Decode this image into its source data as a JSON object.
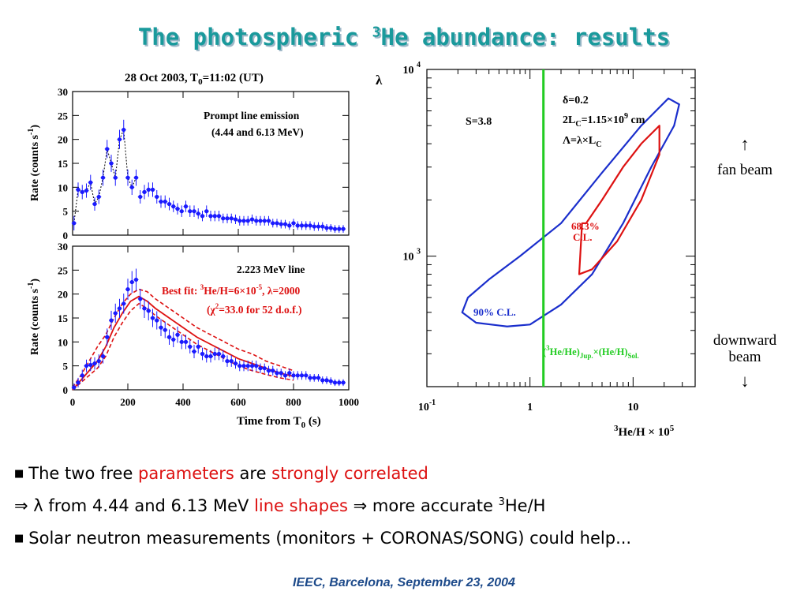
{
  "title": {
    "main": "The photospheric ",
    "sup": "3",
    "rest": "He abundance: results"
  },
  "left_panel": {
    "header": "28 Oct 2003,  T",
    "header_sub": "0",
    "header_rest": "=11:02 (UT)",
    "ylabel": "Rate (counts s",
    "ylabel_sup": "-1",
    "ylabel_end": ")",
    "xlabel": "Time from T",
    "xlabel_sub": "0",
    "xlabel_end": " (s)",
    "top_text1": "Prompt line emission",
    "top_text2": "(4.44 and 6.13 MeV)",
    "bottom_text1": "2.223 MeV line",
    "fit_text1a": "Best fit: ",
    "fit_text1b": "3",
    "fit_text1c": "He/H=6×10",
    "fit_text1d": "-5",
    "fit_text1e": ", λ=2000",
    "fit_text2a": "(χ",
    "fit_text2b": "2",
    "fit_text2c": "=33.0 for 52 d.o.f.)"
  },
  "right_panel": {
    "ylabel": "λ",
    "xlabel_a": "3",
    "xlabel_b": "He/H × 10",
    "xlabel_c": "5",
    "s_label": "S=3.8",
    "delta": "δ=0.2",
    "lc_a": "2L",
    "lc_b": "C",
    "lc_c": "=1.15×10",
    "lc_d": "9",
    "lc_e": " cm",
    "lam_a": "Λ=λ×L",
    "lam_b": "C",
    "cl68a": "68.3%",
    "cl68b": "C.L.",
    "cl90": "90% C.L.",
    "jup_a": "(",
    "jup_b": "3",
    "jup_c": "He/He)",
    "jup_d": "Jup.",
    "jup_e": "×(He/H)",
    "jup_f": "Sol.",
    "fan_arrow": "↑",
    "fan_text": "fan beam",
    "down_text1": "downward",
    "down_text2": "beam",
    "down_arrow": "↓"
  },
  "bullets": {
    "b1a": "The two free ",
    "b1b": "parameters",
    "b1c": " are ",
    "b1d": "strongly correlated",
    "b2a": "⇒ λ from 4.44 and 6.13 MeV ",
    "b2b": "line shapes",
    "b2c": " ⇒ more accurate ",
    "b2d": "3",
    "b2e": "He/H",
    "b3": "Solar neutron measurements (monitors + CORONAS/SONG) could help..."
  },
  "footer": "IEEC, Barcelona, September 23, 2004",
  "colors": {
    "points": "#1a1aff",
    "fit": "#dd1111",
    "contour90": "#1a2ecc",
    "contour68": "#dd1111",
    "jupiter_line": "#22cc22",
    "title": "#1a9a9c"
  },
  "chart_data": [
    {
      "type": "scatter",
      "panel": "top",
      "xlim": [
        0,
        1000
      ],
      "ylim": [
        0,
        30
      ],
      "x_ticks": [
        0,
        200,
        400,
        600,
        800,
        1000
      ],
      "y_ticks": [
        0,
        5,
        10,
        15,
        20,
        25,
        30
      ],
      "series": [
        {
          "x": [
            5,
            20,
            35,
            50,
            65,
            80,
            95,
            110,
            125,
            140,
            155,
            170,
            185,
            200,
            215,
            230,
            245,
            260,
            275,
            290,
            305,
            320,
            335,
            350,
            365,
            380,
            395,
            410,
            425,
            440,
            455,
            470,
            485,
            500,
            515,
            530,
            545,
            560,
            575,
            590,
            605,
            620,
            635,
            650,
            665,
            680,
            695,
            710,
            725,
            740,
            755,
            770,
            785,
            800,
            815,
            830,
            845,
            860,
            875,
            890,
            905,
            920,
            935,
            950,
            965,
            980
          ],
          "y": [
            2.5,
            9.5,
            9.0,
            9.3,
            11,
            6.5,
            8,
            12,
            18,
            15,
            12,
            20,
            22,
            12,
            10,
            12,
            8,
            9,
            9.5,
            9.5,
            8,
            7,
            7,
            6.5,
            6,
            5.5,
            5,
            6,
            5,
            5,
            4.5,
            4,
            5,
            4,
            4,
            4,
            3.5,
            3.5,
            3.5,
            3.3,
            3,
            3,
            3,
            3.3,
            3,
            3,
            3,
            3,
            2.5,
            2.5,
            2.3,
            2.3,
            2,
            2.5,
            2,
            2,
            2,
            2,
            1.8,
            1.8,
            1.8,
            1.5,
            1.5,
            1.3,
            1.3,
            1.3
          ],
          "err": [
            1.5,
            1.5,
            1.5,
            1.5,
            1.6,
            1.4,
            1.5,
            1.7,
            1.9,
            1.8,
            1.7,
            2.0,
            2.1,
            1.7,
            1.6,
            1.7,
            1.4,
            1.5,
            1.5,
            1.5,
            1.4,
            1.3,
            1.3,
            1.3,
            1.2,
            1.2,
            1.2,
            1.2,
            1.2,
            1.2,
            1.1,
            1.1,
            1.2,
            1.1,
            1.1,
            1.1,
            1.0,
            1.0,
            1.0,
            1.0,
            1.0,
            1.0,
            1.0,
            1.0,
            1.0,
            1.0,
            1.0,
            1.0,
            0.9,
            0.9,
            0.9,
            0.9,
            0.9,
            0.9,
            0.9,
            0.9,
            0.9,
            0.9,
            0.9,
            0.9,
            0.9,
            0.8,
            0.8,
            0.8,
            0.8,
            0.8
          ]
        }
      ]
    },
    {
      "type": "scatter",
      "panel": "bottom",
      "xlim": [
        0,
        1000
      ],
      "ylim": [
        0,
        30
      ],
      "x_ticks": [
        0,
        200,
        400,
        600,
        800,
        1000
      ],
      "y_ticks": [
        0,
        5,
        10,
        15,
        20,
        25,
        30
      ],
      "series": [
        {
          "x": [
            5,
            20,
            35,
            50,
            65,
            80,
            95,
            110,
            125,
            140,
            155,
            170,
            185,
            200,
            215,
            230,
            245,
            260,
            275,
            290,
            305,
            320,
            335,
            350,
            365,
            380,
            395,
            410,
            425,
            440,
            455,
            470,
            485,
            500,
            515,
            530,
            545,
            560,
            575,
            590,
            605,
            620,
            635,
            650,
            665,
            680,
            695,
            710,
            725,
            740,
            755,
            770,
            785,
            800,
            815,
            830,
            845,
            860,
            875,
            890,
            905,
            920,
            935,
            950,
            965,
            980
          ],
          "y": [
            0.5,
            1.5,
            3,
            5,
            5.2,
            5.5,
            6,
            7,
            11,
            14.5,
            16,
            17,
            18,
            21,
            22.5,
            23,
            19,
            17,
            16.5,
            15,
            14.5,
            13,
            12.5,
            11,
            10.5,
            11.5,
            10,
            10,
            9,
            8,
            9,
            7.5,
            7,
            7,
            7.5,
            7.5,
            7,
            6,
            6,
            5.5,
            5,
            5,
            5,
            5,
            5,
            4.5,
            4.5,
            4,
            4,
            3.5,
            3.5,
            3,
            3.5,
            3,
            3,
            3,
            3,
            2.5,
            2.5,
            2.5,
            2,
            2,
            1.8,
            1.5,
            1.5,
            1.5
          ],
          "err": [
            0.8,
            1,
            1.2,
            1.3,
            1.3,
            1.3,
            1.4,
            1.5,
            1.8,
            2,
            2,
            2,
            2.1,
            2.2,
            2.3,
            2.3,
            2.1,
            2,
            2,
            1.9,
            1.9,
            1.8,
            1.7,
            1.6,
            1.6,
            1.7,
            1.5,
            1.5,
            1.4,
            1.4,
            1.4,
            1.3,
            1.3,
            1.3,
            1.3,
            1.3,
            1.2,
            1.2,
            1.2,
            1.1,
            1.1,
            1.1,
            1.1,
            1.1,
            1.1,
            1.0,
            1.0,
            1.0,
            1.0,
            0.9,
            0.9,
            0.9,
            0.9,
            0.9,
            0.9,
            0.9,
            0.9,
            0.8,
            0.8,
            0.8,
            0.8,
            0.8,
            0.8,
            0.7,
            0.7,
            0.7
          ]
        }
      ],
      "fit": {
        "x": [
          0,
          30,
          60,
          90,
          120,
          150,
          180,
          210,
          240,
          270,
          300,
          350,
          400,
          450,
          500,
          550,
          600,
          650,
          700,
          750,
          800
        ],
        "y": [
          0,
          2,
          4,
          6,
          9,
          13,
          16,
          18.5,
          19.5,
          18.5,
          17,
          15,
          13,
          11,
          9.5,
          8,
          6.5,
          5.5,
          4.5,
          3.5,
          2.8
        ],
        "band_upper": [
          0.5,
          3,
          6,
          9,
          11.5,
          15,
          18,
          20,
          21,
          20.5,
          19,
          17,
          15,
          13,
          11.5,
          10,
          8.5,
          7.5,
          6,
          5,
          4
        ],
        "band_lower": [
          0,
          1.5,
          3,
          4.5,
          7,
          11,
          14,
          16.5,
          18,
          17,
          15.5,
          13.5,
          11.5,
          9.5,
          8,
          6.5,
          5,
          4,
          3.2,
          2.5,
          2
        ]
      }
    },
    {
      "type": "contour",
      "panel": "right",
      "x_scale": "log",
      "y_scale": "log",
      "xlim": [
        0.1,
        40
      ],
      "ylim": [
        200,
        10000
      ],
      "x_ticks": [
        "10 -1",
        "1",
        "10"
      ],
      "y_ticks": [
        "10 3",
        "10 4"
      ],
      "jupiter_x": 1.35,
      "best_fit": {
        "x": 6,
        "y": 2000
      },
      "contour_68": {
        "x": [
          3.2,
          3.0,
          4.0,
          7.0,
          12,
          18,
          18,
          12,
          8,
          5,
          3.5,
          3.2
        ],
        "y": [
          1500,
          800,
          850,
          1200,
          2000,
          3500,
          5000,
          4000,
          3000,
          2000,
          1500,
          1500
        ]
      },
      "contour_90": {
        "x": [
          0.22,
          0.3,
          0.6,
          1.0,
          2.0,
          4.0,
          8.0,
          15,
          25,
          28,
          22,
          12,
          5,
          2,
          0.8,
          0.4,
          0.25,
          0.22
        ],
        "y": [
          500,
          440,
          420,
          430,
          550,
          800,
          1500,
          3000,
          5000,
          6500,
          7000,
          5000,
          2800,
          1500,
          1000,
          750,
          600,
          500
        ]
      }
    }
  ]
}
